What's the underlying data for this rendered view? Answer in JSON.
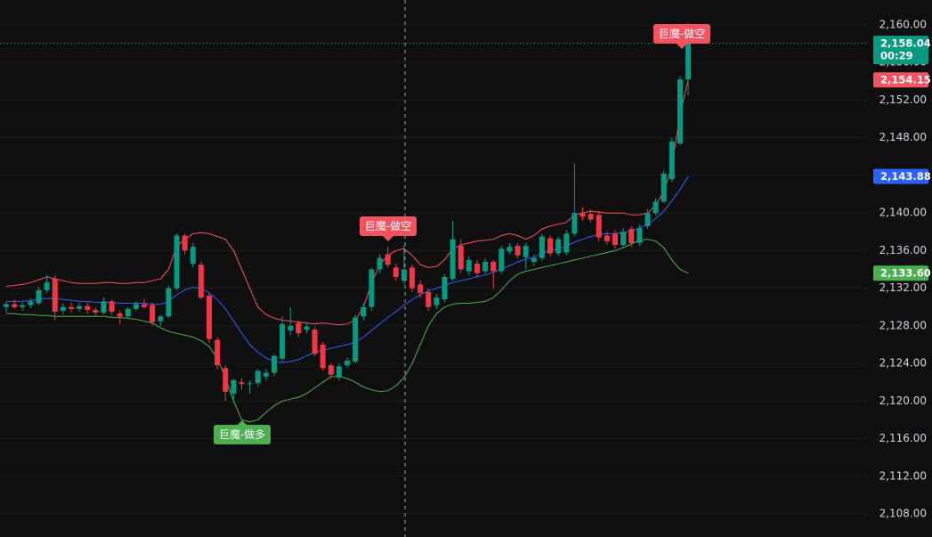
{
  "chart_data": {
    "type": "candlestick",
    "up_color": "#089981",
    "down_color": "#f23645",
    "ylim": [
      2105.54,
      2162.65
    ],
    "yticks": [
      {
        "value": 2108,
        "label": "2,108.00"
      },
      {
        "value": 2112,
        "label": "2,112.00"
      },
      {
        "value": 2116,
        "label": "2,116.00"
      },
      {
        "value": 2120,
        "label": "2,120.00"
      },
      {
        "value": 2124,
        "label": "2,124.00"
      },
      {
        "value": 2128,
        "label": "2,128.00"
      },
      {
        "value": 2132,
        "label": "2,132.00"
      },
      {
        "value": 2136,
        "label": "2,136.00"
      },
      {
        "value": 2140,
        "label": "2,140.00"
      },
      {
        "value": 2144,
        "label": "2,144.00"
      },
      {
        "value": 2148,
        "label": "2,148.00"
      },
      {
        "value": 2152,
        "label": "2,152.00"
      },
      {
        "value": 2156,
        "label": "2,156.00"
      },
      {
        "value": 2160,
        "label": "2,160.00"
      }
    ],
    "grid": true,
    "open": [
      2130.0,
      2130.3,
      2130.0,
      2130.2,
      2130.4,
      2131.8,
      2133.0,
      2129.6,
      2130.0,
      2129.8,
      2130.1,
      2129.7,
      2129.4,
      2130.6,
      2129.3,
      2129.0,
      2129.8,
      2130.3,
      2130.2,
      2128.5,
      2129.0,
      2132.0,
      2137.6,
      2134.6,
      2134.5,
      2131.2,
      2126.5,
      2123.5,
      2120.8,
      2122.0,
      2121.8,
      2121.9,
      2122.6,
      2123.0,
      2124.5,
      2127.5,
      2128.3,
      2127.6,
      2127.6,
      2126.0,
      2123.8,
      2122.5,
      2123.8,
      2124.2,
      2129.0,
      2130.0,
      2134.0,
      2135.6,
      2134.2,
      2132.8,
      2134.2,
      2132.4,
      2131.6,
      2130.2,
      2130.8,
      2133.0,
      2136.5,
      2133.8,
      2134.6,
      2133.8,
      2134.8,
      2133.8,
      2135.9,
      2136.5,
      2135.3,
      2134.8,
      2135.2,
      2137.3,
      2135.7,
      2135.8,
      2137.8,
      2140.0,
      2139.9,
      2139.8,
      2137.6,
      2137.8,
      2136.6,
      2138.3,
      2136.8,
      2138.6,
      2140.0,
      2141.2,
      2143.6,
      2147.4,
      2154.2
    ],
    "high": [
      2130.6,
      2130.8,
      2130.5,
      2130.9,
      2132.2,
      2133.4,
      2133.4,
      2130.4,
      2130.5,
      2130.5,
      2130.5,
      2130.0,
      2131.0,
      2130.8,
      2129.6,
      2130.0,
      2130.6,
      2130.9,
      2130.5,
      2129.2,
      2132.3,
      2137.8,
      2137.8,
      2136.8,
      2134.8,
      2131.4,
      2126.8,
      2123.8,
      2122.4,
      2122.4,
      2122.2,
      2123.4,
      2123.4,
      2125.0,
      2129.0,
      2130.0,
      2128.6,
      2128.4,
      2127.9,
      2126.3,
      2124.0,
      2124.0,
      2124.6,
      2129.2,
      2130.4,
      2134.2,
      2135.6,
      2136.4,
      2134.6,
      2136.6,
      2134.5,
      2132.8,
      2132.0,
      2131.4,
      2133.5,
      2139.2,
      2137.2,
      2135.4,
      2135.0,
      2135.2,
      2135.0,
      2136.5,
      2136.8,
      2136.8,
      2136.8,
      2135.6,
      2137.8,
      2137.6,
      2137.5,
      2138.2,
      2145.3,
      2140.6,
      2140.4,
      2140.2,
      2138.0,
      2138.2,
      2138.4,
      2138.6,
      2138.8,
      2140.4,
      2141.6,
      2144.6,
      2148.0,
      2154.6,
      2160.2
    ],
    "low": [
      2129.4,
      2129.8,
      2129.6,
      2129.9,
      2130.2,
      2131.5,
      2128.6,
      2129.2,
      2129.4,
      2129.5,
      2129.3,
      2129.0,
      2129.2,
      2129.2,
      2128.2,
      2128.8,
      2129.6,
      2129.8,
      2128.0,
      2128.0,
      2128.8,
      2131.8,
      2135.6,
      2134.2,
      2130.8,
      2126.2,
      2123.4,
      2120.0,
      2119.8,
      2121.2,
      2120.8,
      2121.5,
      2122.2,
      2122.6,
      2124.2,
      2127.0,
      2126.8,
      2127.2,
      2124.8,
      2123.2,
      2122.4,
      2122.2,
      2123.5,
      2124.0,
      2128.6,
      2129.6,
      2133.6,
      2134.2,
      2132.8,
      2132.4,
      2131.6,
      2131.0,
      2129.6,
      2129.8,
      2130.5,
      2132.8,
      2133.6,
      2133.4,
      2133.2,
      2133.5,
      2132.0,
      2133.5,
      2135.6,
      2135.2,
      2134.0,
      2134.4,
      2134.9,
      2135.4,
      2135.4,
      2135.5,
      2137.5,
      2139.2,
      2139.0,
      2137.0,
      2136.6,
      2136.2,
      2136.2,
      2136.4,
      2136.5,
      2138.3,
      2139.7,
      2141.0,
      2143.3,
      2147.2,
      2152.5
    ],
    "close": [
      2130.3,
      2130.0,
      2130.2,
      2130.6,
      2131.8,
      2132.6,
      2129.5,
      2130.0,
      2129.8,
      2130.1,
      2129.7,
      2129.4,
      2130.6,
      2129.5,
      2129.0,
      2129.8,
      2130.3,
      2130.0,
      2128.4,
      2129.0,
      2132.0,
      2137.6,
      2136.0,
      2136.4,
      2131.0,
      2126.6,
      2123.8,
      2121.0,
      2122.2,
      2121.8,
      2121.9,
      2123.2,
      2123.0,
      2124.8,
      2128.2,
      2128.0,
      2127.2,
      2127.9,
      2125.0,
      2123.5,
      2122.8,
      2123.7,
      2124.3,
      2128.9,
      2130.0,
      2134.0,
      2135.2,
      2134.5,
      2133.2,
      2134.0,
      2132.0,
      2131.5,
      2130.0,
      2131.0,
      2133.2,
      2137.2,
      2134.0,
      2135.0,
      2133.6,
      2134.8,
      2133.8,
      2136.2,
      2136.4,
      2135.5,
      2136.5,
      2135.2,
      2137.5,
      2135.7,
      2137.2,
      2137.8,
      2140.0,
      2139.6,
      2139.3,
      2137.4,
      2137.0,
      2136.6,
      2138.0,
      2136.8,
      2138.4,
      2140.0,
      2141.2,
      2144.2,
      2147.6,
      2154.2,
      2158.04
    ],
    "bands": [
      {
        "color": "#f7525f",
        "values": [
          2132.2,
          2132.3,
          2132.4,
          2132.6,
          2132.9,
          2133.2,
          2133.0,
          2132.8,
          2132.6,
          2132.5,
          2132.5,
          2132.5,
          2132.6,
          2132.6,
          2132.5,
          2132.5,
          2132.6,
          2132.6,
          2132.8,
          2133.0,
          2134.0,
          2136.5,
          2137.2,
          2137.8,
          2137.9,
          2137.8,
          2137.5,
          2137.2,
          2136.0,
          2134.0,
          2132.0,
          2130.0,
          2129.2,
          2128.8,
          2128.6,
          2128.5,
          2128.4,
          2128.3,
          2128.2,
          2128.3,
          2128.2,
          2128.1,
          2128.2,
          2128.6,
          2130.0,
          2132.5,
          2134.5,
          2135.5,
          2136.0,
          2136.2,
          2135.5,
          2134.5,
          2134.2,
          2134.3,
          2135.0,
          2136.2,
          2136.6,
          2136.8,
          2137.0,
          2137.1,
          2137.2,
          2137.6,
          2137.8,
          2137.6,
          2137.2,
          2137.6,
          2138.3,
          2138.6,
          2138.8,
          2139.0,
          2139.8,
          2140.0,
          2140.2,
          2140.1,
          2140.0,
          2140.0,
          2140.0,
          2139.8,
          2139.8,
          2140.0,
          2140.8,
          2142.3,
          2145.0,
          2150.5,
          2154.15
        ]
      },
      {
        "color": "#2962ff",
        "values": [
          2130.6,
          2130.6,
          2130.6,
          2130.7,
          2130.8,
          2130.9,
          2130.9,
          2130.8,
          2130.7,
          2130.6,
          2130.6,
          2130.5,
          2130.5,
          2130.5,
          2130.4,
          2130.4,
          2130.4,
          2130.4,
          2130.3,
          2130.3,
          2130.6,
          2131.3,
          2131.8,
          2132.1,
          2132.0,
          2131.5,
          2130.8,
          2129.8,
          2128.5,
          2127.2,
          2126.0,
          2125.2,
          2124.6,
          2124.2,
          2124.1,
          2124.2,
          2124.4,
          2124.8,
          2125.2,
          2125.4,
          2125.6,
          2125.8,
          2126.0,
          2126.3,
          2126.8,
          2127.5,
          2128.2,
          2128.9,
          2129.5,
          2130.2,
          2130.8,
          2131.3,
          2131.7,
          2132.0,
          2132.3,
          2132.6,
          2132.8,
          2133.0,
          2133.2,
          2133.4,
          2133.7,
          2134.0,
          2134.4,
          2134.8,
          2135.1,
          2135.3,
          2135.7,
          2136.0,
          2136.2,
          2136.5,
          2136.9,
          2137.2,
          2137.5,
          2137.7,
          2137.8,
          2137.8,
          2137.9,
          2138.1,
          2138.4,
          2138.8,
          2139.4,
          2140.2,
          2141.3,
          2142.5,
          2143.88
        ]
      },
      {
        "color": "#4caf50",
        "values": [
          2129.3,
          2129.3,
          2129.2,
          2129.2,
          2129.1,
          2129.1,
          2129.0,
          2129.0,
          2129.0,
          2129.0,
          2129.0,
          2129.0,
          2129.0,
          2128.9,
          2128.9,
          2128.8,
          2128.7,
          2128.5,
          2128.3,
          2127.8,
          2127.4,
          2127.2,
          2127.0,
          2126.8,
          2126.4,
          2125.8,
          2124.5,
          2122.5,
          2120.0,
          2118.0,
          2117.8,
          2118.0,
          2118.8,
          2119.5,
          2120.0,
          2120.2,
          2120.4,
          2120.8,
          2121.4,
          2122.0,
          2122.6,
          2122.6,
          2122.4,
          2122.0,
          2121.5,
          2121.2,
          2121.0,
          2121.1,
          2121.6,
          2122.5,
          2124.0,
          2126.0,
          2128.0,
          2129.3,
          2130.0,
          2130.3,
          2130.4,
          2130.4,
          2130.5,
          2130.6,
          2131.0,
          2131.8,
          2132.8,
          2133.5,
          2133.8,
          2134.0,
          2134.2,
          2134.4,
          2134.6,
          2134.8,
          2135.0,
          2135.2,
          2135.4,
          2135.6,
          2135.8,
          2136.0,
          2136.3,
          2136.7,
          2137.1,
          2137.2,
          2137.0,
          2136.3,
          2135.0,
          2134.0,
          2133.6
        ]
      }
    ],
    "price_tags": [
      {
        "value": 2158.04,
        "label": "2,158.04",
        "sub": "00:29",
        "color": "#089981"
      },
      {
        "value": 2154.15,
        "label": "2,154.15",
        "color": "#f7525f"
      },
      {
        "value": 2143.88,
        "label": "2,143.88",
        "color": "#2962ff"
      },
      {
        "value": 2133.6,
        "label": "2,133.60",
        "color": "#4caf50"
      }
    ],
    "signals": [
      "巨魔-做多",
      "巨魔-做空",
      "巨魔-做空"
    ]
  }
}
